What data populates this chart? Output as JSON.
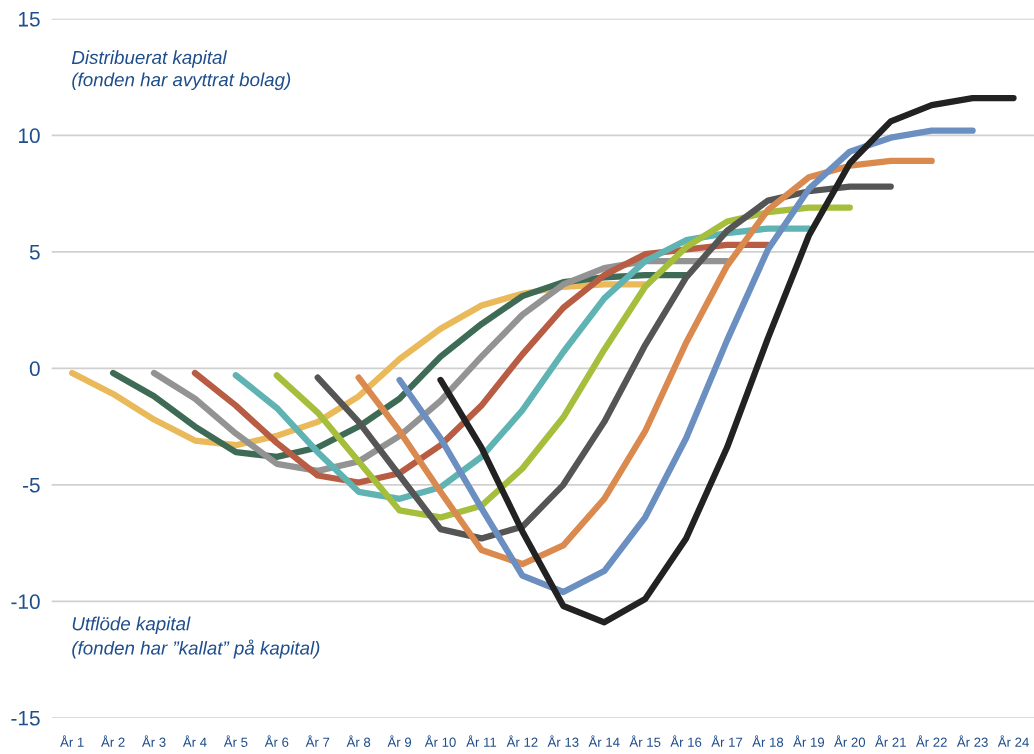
{
  "chart_data": {
    "type": "line",
    "categories": [
      "År 1",
      "År 2",
      "År 3",
      "År 4",
      "År 5",
      "År 6",
      "År 7",
      "År 8",
      "År 9",
      "År 10",
      "År 11",
      "År 12",
      "År 13",
      "År 14",
      "År 15",
      "År 16",
      "År 17",
      "År 18",
      "År 19",
      "År 20",
      "År 21",
      "År 22",
      "År 23",
      "År 24"
    ],
    "series": [
      {
        "color": "#e9b95a",
        "values": [
          -0.2,
          -1.1,
          -2.2,
          -3.1,
          -3.3,
          -2.9,
          -2.3,
          -1.2,
          0.4,
          1.7,
          2.7,
          3.2,
          3.5,
          3.6,
          3.6,
          null,
          null,
          null,
          null,
          null,
          null,
          null,
          null,
          null
        ]
      },
      {
        "color": "#3e6b55",
        "values": [
          null,
          -0.2,
          -1.2,
          -2.5,
          -3.6,
          -3.8,
          -3.4,
          -2.5,
          -1.3,
          0.5,
          1.9,
          3.1,
          3.7,
          3.9,
          4.0,
          4.0,
          null,
          null,
          null,
          null,
          null,
          null,
          null,
          null
        ]
      },
      {
        "color": "#939393",
        "values": [
          null,
          null,
          -0.2,
          -1.3,
          -2.8,
          -4.1,
          -4.4,
          -4.0,
          -2.9,
          -1.4,
          0.5,
          2.3,
          3.6,
          4.3,
          4.6,
          4.6,
          4.6,
          null,
          null,
          null,
          null,
          null,
          null,
          null
        ]
      },
      {
        "color": "#b85c43",
        "values": [
          null,
          null,
          null,
          -0.2,
          -1.6,
          -3.2,
          -4.6,
          -4.9,
          -4.5,
          -3.3,
          -1.6,
          0.6,
          2.6,
          4.0,
          4.9,
          5.1,
          5.3,
          5.3,
          null,
          null,
          null,
          null,
          null,
          null
        ]
      },
      {
        "color": "#5fb3b3",
        "values": [
          null,
          null,
          null,
          null,
          -0.3,
          -1.7,
          -3.6,
          -5.3,
          -5.6,
          -5.1,
          -3.8,
          -1.8,
          0.7,
          3.0,
          4.6,
          5.5,
          5.8,
          6.0,
          6.0,
          null,
          null,
          null,
          null,
          null
        ]
      },
      {
        "color": "#a5be3c",
        "values": [
          null,
          null,
          null,
          null,
          null,
          -0.3,
          -1.9,
          -4.0,
          -6.1,
          -6.4,
          -5.9,
          -4.3,
          -2.1,
          0.8,
          3.5,
          5.2,
          6.3,
          6.7,
          6.9,
          6.9,
          null,
          null,
          null,
          null
        ]
      },
      {
        "color": "#555555",
        "values": [
          null,
          null,
          null,
          null,
          null,
          null,
          -0.4,
          -2.3,
          -4.6,
          -6.9,
          -7.3,
          -6.8,
          -5.0,
          -2.3,
          1.0,
          3.9,
          5.9,
          7.2,
          7.6,
          7.8,
          7.8,
          null,
          null,
          null
        ]
      },
      {
        "color": "#db8a4f",
        "values": [
          null,
          null,
          null,
          null,
          null,
          null,
          null,
          -0.4,
          -2.7,
          -5.3,
          -7.8,
          -8.4,
          -7.6,
          -5.6,
          -2.7,
          1.1,
          4.4,
          6.8,
          8.2,
          8.7,
          8.9,
          8.9,
          null,
          null
        ]
      },
      {
        "color": "#6a8fc0",
        "values": [
          null,
          null,
          null,
          null,
          null,
          null,
          null,
          null,
          -0.5,
          -3.0,
          -6.0,
          -8.9,
          -9.6,
          -8.7,
          -6.4,
          -3.0,
          1.2,
          5.1,
          7.7,
          9.3,
          9.9,
          10.2,
          10.2,
          null
        ]
      },
      {
        "color": "#222222",
        "values": [
          null,
          null,
          null,
          null,
          null,
          null,
          null,
          null,
          null,
          -0.5,
          -3.4,
          -7.0,
          -10.2,
          -10.9,
          -9.9,
          -7.3,
          -3.4,
          1.3,
          5.7,
          8.8,
          10.6,
          11.3,
          11.6,
          11.6
        ]
      }
    ],
    "ylim": [
      -15,
      15
    ],
    "yticks": [
      -15,
      -10,
      -5,
      0,
      5,
      10,
      15
    ],
    "grid": "y",
    "legend": false,
    "marker": "none",
    "line_style": "solid",
    "annotations": [
      "Distribuerat kapital\n(fonden har avyttrat bolag)",
      "Utflöde kapital\n(fonden har ”kallat” på kapital)"
    ]
  }
}
